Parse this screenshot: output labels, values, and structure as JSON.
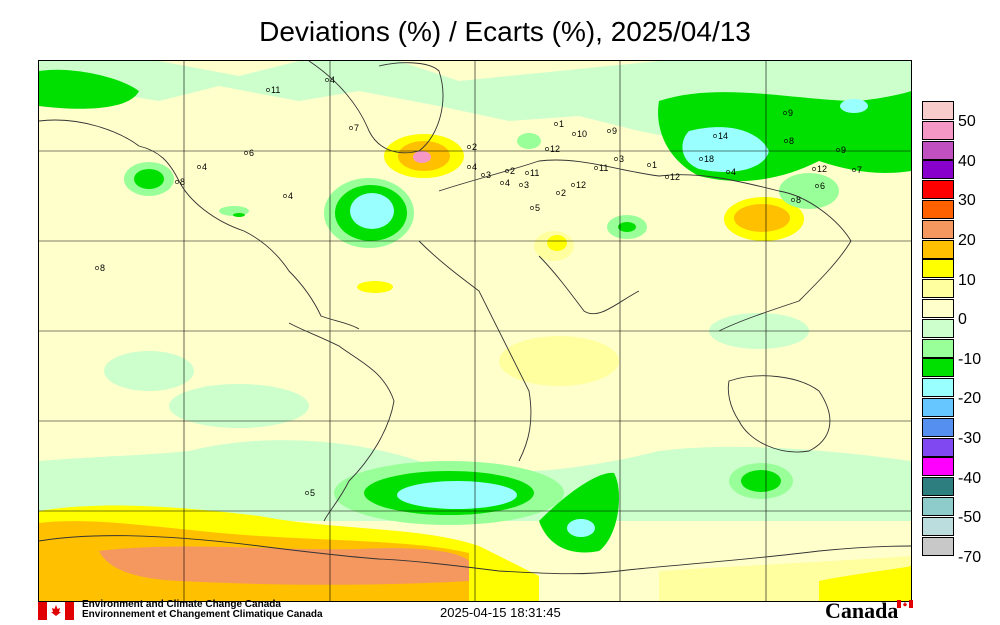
{
  "header": {
    "title": "Deviations (%) / Ecarts (%), 2025/04/13"
  },
  "legend": {
    "labels": [
      "50",
      "40",
      "30",
      "20",
      "10",
      "0",
      "-10",
      "-20",
      "-30",
      "-40",
      "-50",
      "-70"
    ],
    "colors": [
      "#f9cccc",
      "#f598c6",
      "#c050c0",
      "#8800cc",
      "#ff0000",
      "#ff6000",
      "#f59860",
      "#ffc000",
      "#ffff00",
      "#ffffa0",
      "#ffffcc",
      "#ccffcc",
      "#99ff99",
      "#00e000",
      "#99ffff",
      "#66c6ff",
      "#5590f0",
      "#7f48f0",
      "#ff00ff",
      "#2d7f7f",
      "#8ecccc",
      "#bbdddd",
      "#c8c8c8"
    ]
  },
  "stations": [
    {
      "label": "11"
    },
    {
      "label": "4"
    },
    {
      "label": "7"
    },
    {
      "label": "4"
    },
    {
      "label": "6"
    },
    {
      "label": "8"
    },
    {
      "label": "4"
    },
    {
      "label": "8"
    },
    {
      "label": "2"
    },
    {
      "label": "4"
    },
    {
      "label": "3"
    },
    {
      "label": "4"
    },
    {
      "label": "2"
    },
    {
      "label": "10"
    },
    {
      "label": "12"
    },
    {
      "label": "1"
    },
    {
      "label": "11"
    },
    {
      "label": "5"
    },
    {
      "label": "3"
    },
    {
      "label": "12"
    },
    {
      "label": "2"
    },
    {
      "label": "9"
    },
    {
      "label": "3"
    },
    {
      "label": "11"
    },
    {
      "label": "1"
    },
    {
      "label": "12"
    },
    {
      "label": "14"
    },
    {
      "label": "18"
    },
    {
      "label": "4"
    },
    {
      "label": "9"
    },
    {
      "label": "8"
    },
    {
      "label": "12"
    },
    {
      "label": "9"
    },
    {
      "label": "6"
    },
    {
      "label": "7"
    },
    {
      "label": "8"
    },
    {
      "label": "5"
    }
  ],
  "footer": {
    "org_en": "Environment and Climate Change Canada",
    "org_fr": "Environnement et Changement Climatique Canada",
    "timestamp": "2025-04-15 18:31:45",
    "wordmark": "Canada"
  }
}
